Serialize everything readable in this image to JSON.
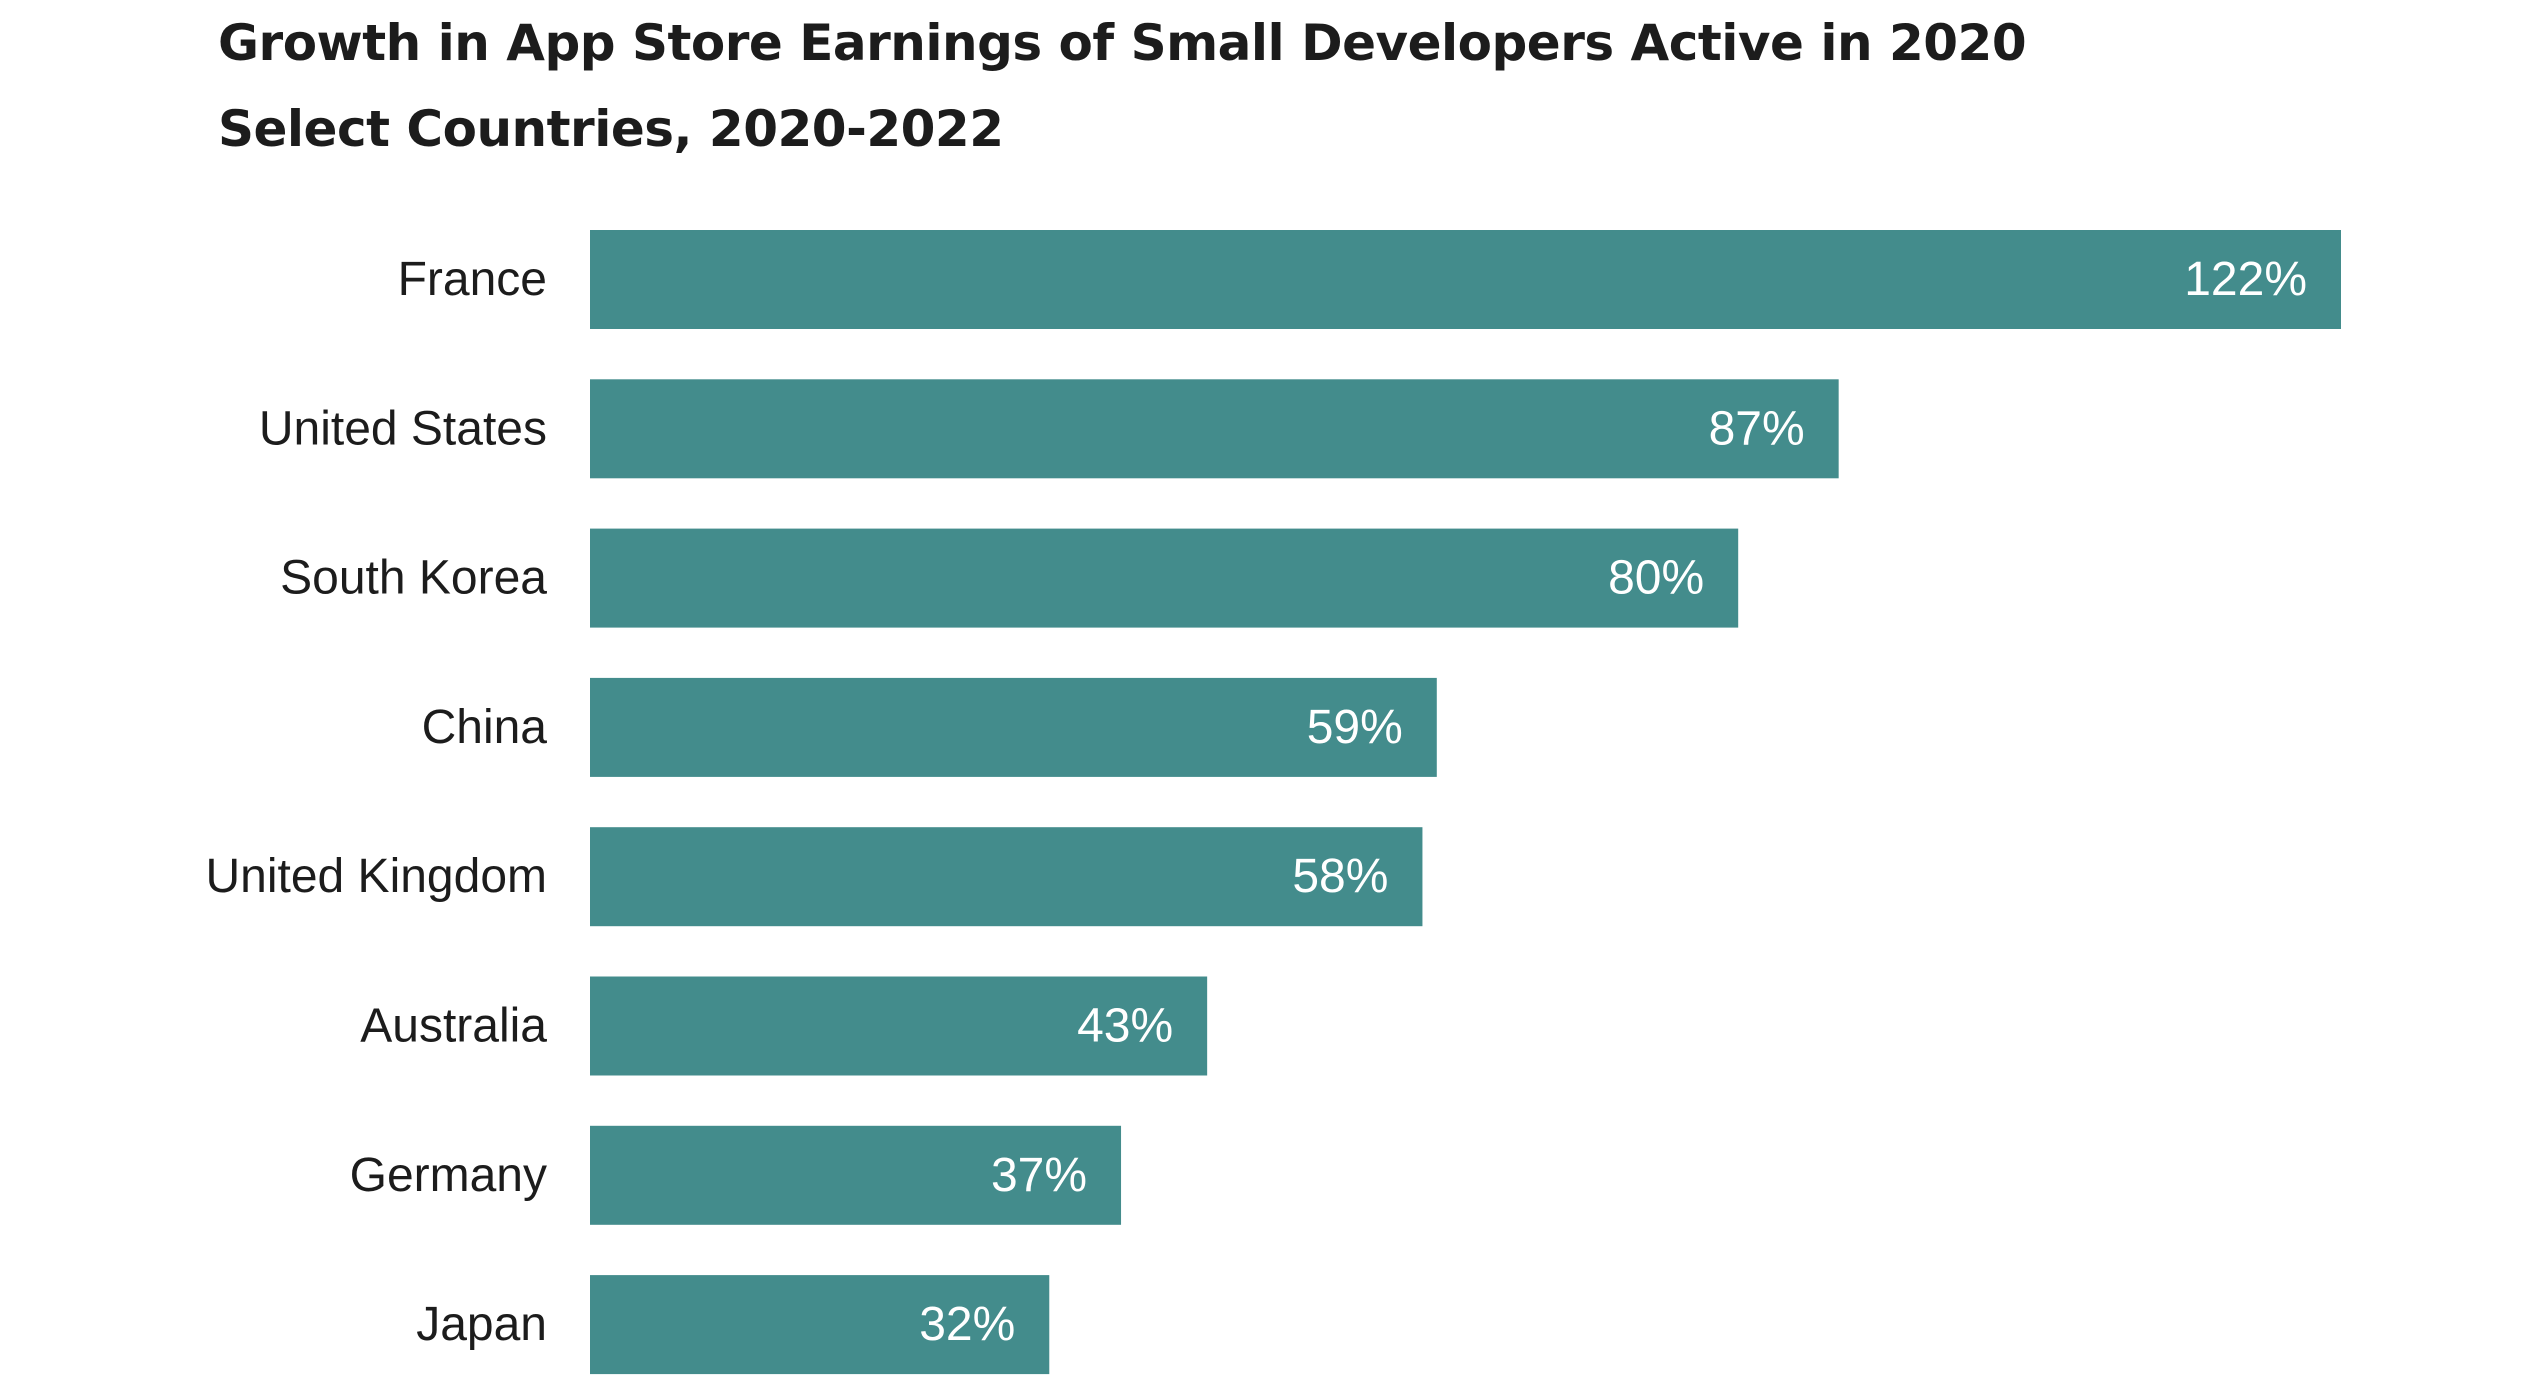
{
  "chart_data": {
    "type": "bar",
    "orientation": "horizontal",
    "title": "Growth in App Store Earnings of Small Developers Active in 2020",
    "subtitle": "Select Countries, 2020-2022",
    "categories": [
      "France",
      "United States",
      "South Korea",
      "China",
      "United Kingdom",
      "Australia",
      "Germany",
      "Japan"
    ],
    "values": [
      122,
      87,
      80,
      59,
      58,
      43,
      37,
      32
    ],
    "value_labels": [
      "122%",
      "87%",
      "80%",
      "59%",
      "58%",
      "43%",
      "37%",
      "32%"
    ],
    "bar_color": "#438c8c",
    "xlim": [
      0,
      122
    ],
    "grid": false,
    "legend": "none"
  }
}
